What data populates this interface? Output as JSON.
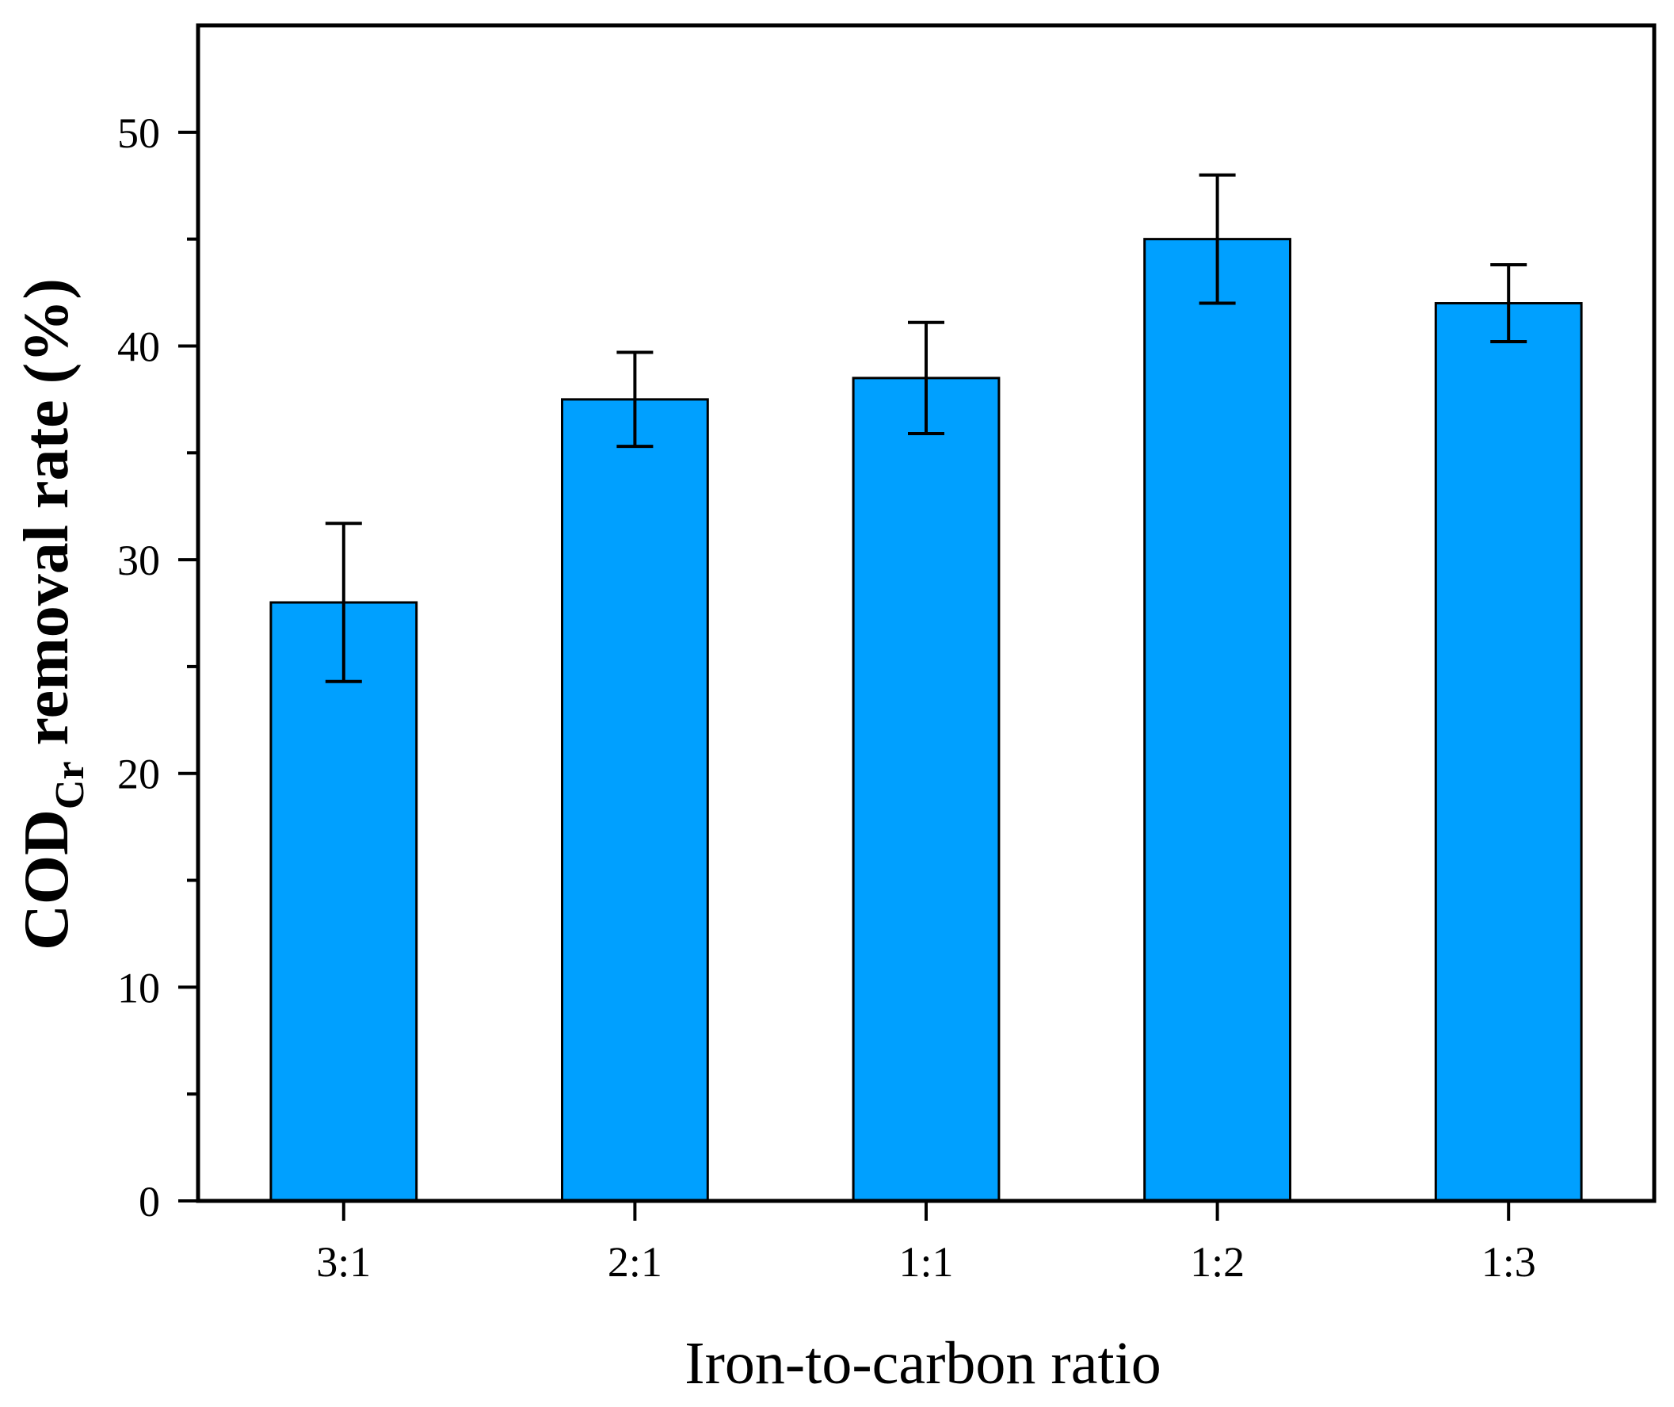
{
  "chart_data": {
    "type": "bar",
    "categories": [
      "3:1",
      "2:1",
      "1:1",
      "1:2",
      "1:3"
    ],
    "values": [
      28.0,
      37.5,
      38.5,
      45.0,
      42.0
    ],
    "errors": [
      3.7,
      2.2,
      2.6,
      3.0,
      1.8
    ],
    "xlabel": "Iron-to-carbon ratio",
    "ylabel": {
      "main": "COD",
      "subscript": "Cr",
      "rest": " removal rate (%)"
    },
    "ylim": [
      0,
      55
    ],
    "yticks": [
      0,
      10,
      20,
      30,
      40,
      50
    ],
    "yticks_minor": [
      5,
      15,
      25,
      35,
      45
    ],
    "bar_color": "#00a0ff",
    "edge_color": "#000000",
    "grid": false
  }
}
